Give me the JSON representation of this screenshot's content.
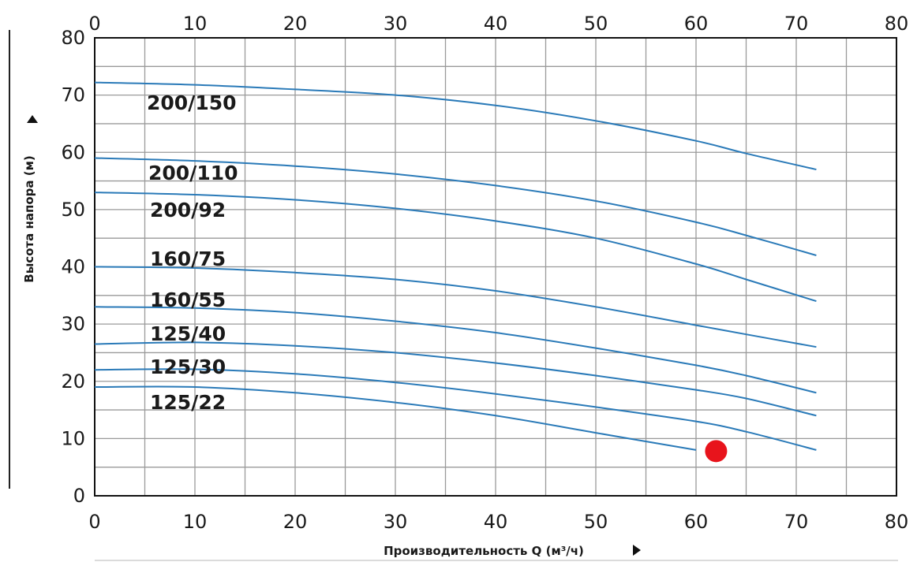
{
  "chart_data": {
    "type": "line",
    "xlabel": "Производительность Q (м³/ч)",
    "ylabel": "Высота напора (м)",
    "xlim": [
      0,
      80
    ],
    "ylim": [
      0,
      80
    ],
    "x_major_ticks": [
      0,
      10,
      20,
      30,
      40,
      50,
      60,
      70,
      80
    ],
    "y_major_ticks": [
      0,
      10,
      20,
      30,
      40,
      50,
      60,
      70,
      80
    ],
    "x_minor_step": 5,
    "y_minor_step": 5,
    "grid": true,
    "top_axis_ticks": true,
    "colors": {
      "series": "#2a7ab8",
      "grid": "#9a9a9a",
      "marker": "#e8141c"
    },
    "series": [
      {
        "name": "200/150",
        "x": [
          0,
          10,
          20,
          30,
          40,
          50,
          60,
          65,
          72
        ],
        "y": [
          72.2,
          71.8,
          71,
          70,
          68.2,
          65.5,
          62,
          59.8,
          57
        ]
      },
      {
        "name": "200/110",
        "x": [
          0,
          10,
          20,
          30,
          40,
          50,
          60,
          65,
          72
        ],
        "y": [
          59,
          58.5,
          57.6,
          56.2,
          54.2,
          51.5,
          47.8,
          45.5,
          42
        ]
      },
      {
        "name": "200/92",
        "x": [
          0,
          10,
          20,
          30,
          40,
          50,
          60,
          65,
          72
        ],
        "y": [
          53,
          52.6,
          51.7,
          50.2,
          48,
          45,
          40.5,
          37.8,
          34
        ]
      },
      {
        "name": "160/75",
        "x": [
          0,
          10,
          20,
          30,
          40,
          50,
          60,
          65,
          72
        ],
        "y": [
          40,
          39.8,
          39,
          37.8,
          35.8,
          33,
          29.8,
          28.2,
          26
        ]
      },
      {
        "name": "160/55",
        "x": [
          0,
          10,
          20,
          30,
          40,
          50,
          60,
          65,
          72
        ],
        "y": [
          33,
          32.8,
          32,
          30.5,
          28.5,
          25.8,
          22.8,
          21,
          18
        ]
      },
      {
        "name": "125/40",
        "x": [
          0,
          10,
          20,
          30,
          40,
          50,
          60,
          65,
          72
        ],
        "y": [
          26.5,
          26.8,
          26.2,
          25,
          23.2,
          21,
          18.5,
          17,
          14
        ]
      },
      {
        "name": "125/30",
        "x": [
          0,
          10,
          20,
          30,
          40,
          50,
          60,
          65,
          72
        ],
        "y": [
          22,
          22.1,
          21.3,
          19.8,
          17.8,
          15.5,
          13,
          11.2,
          8
        ]
      },
      {
        "name": "125/22",
        "x": [
          0,
          10,
          20,
          30,
          40,
          50,
          60
        ],
        "y": [
          19,
          19,
          18,
          16.3,
          14,
          11,
          8
        ]
      }
    ],
    "point": {
      "x": 62,
      "y": 7.8
    }
  }
}
